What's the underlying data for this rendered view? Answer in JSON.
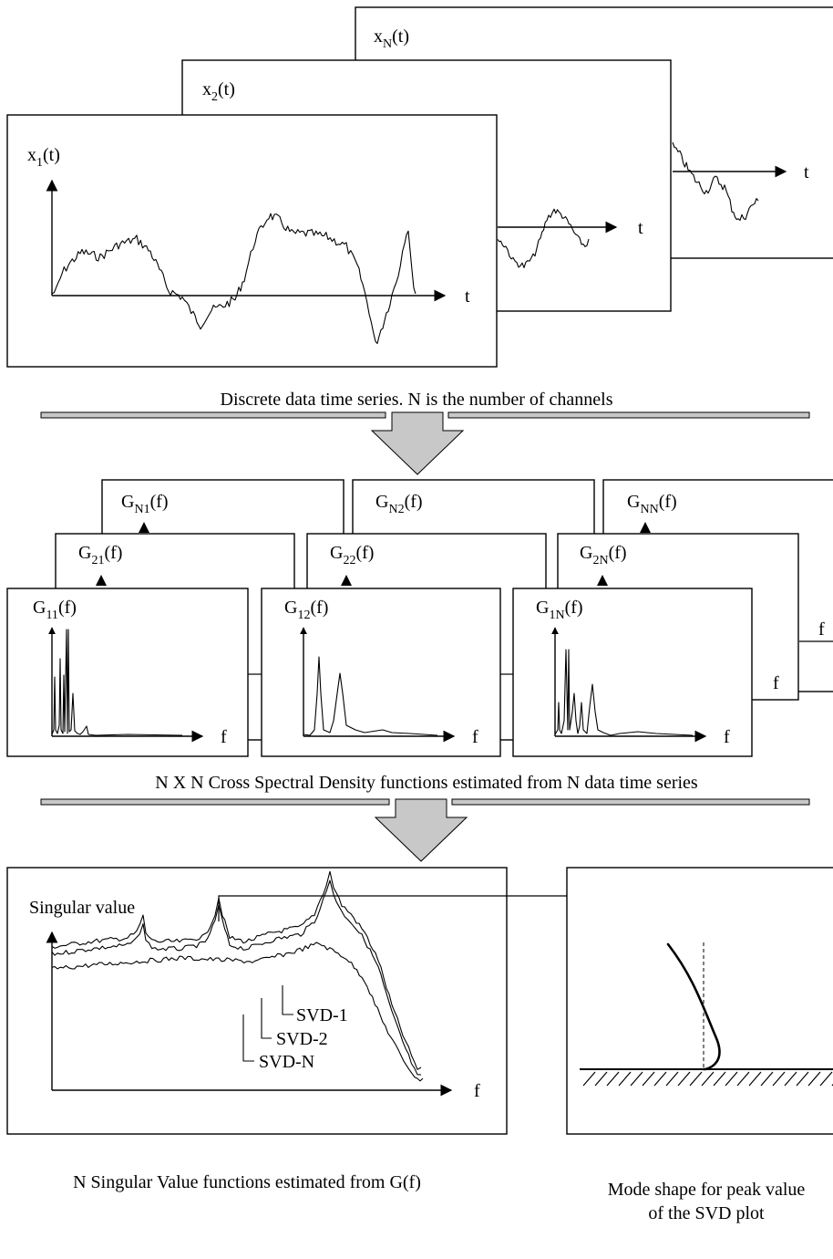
{
  "section1": {
    "caption": "Discrete data time series. N is the number of channels",
    "panels": {
      "xN": {
        "main": "x",
        "sub": "N",
        "tail": "(t)"
      },
      "x2": {
        "main": "x",
        "sub": "2",
        "tail": "(t)"
      },
      "x1": {
        "main": "x",
        "sub": "1",
        "tail": "(t)"
      }
    },
    "axis_label": "t"
  },
  "section2": {
    "caption": "N X N Cross Spectral Density functions estimated from N data time series",
    "axis_label": "f",
    "panels": {
      "gN1": {
        "main": "G",
        "sub": "N1",
        "tail": "(f)"
      },
      "g21": {
        "main": "G",
        "sub": "21",
        "tail": "(f)"
      },
      "g11": {
        "main": "G",
        "sub": "11",
        "tail": "(f)"
      },
      "gN2": {
        "main": "G",
        "sub": "N2",
        "tail": "(f)"
      },
      "g22": {
        "main": "G",
        "sub": "22",
        "tail": "(f)"
      },
      "g12": {
        "main": "G",
        "sub": "12",
        "tail": "(f)"
      },
      "gNN": {
        "main": "G",
        "sub": "NN",
        "tail": "(f)"
      },
      "g2N": {
        "main": "G",
        "sub": "2N",
        "tail": "(f)"
      },
      "g1N": {
        "main": "G",
        "sub": "1N",
        "tail": "(f)"
      }
    }
  },
  "section3": {
    "caption": "N Singular Value functions estimated from G(f)",
    "ylabel": "Singular value",
    "xlabel": "f",
    "curves": [
      "SVD-1",
      "SVD-2",
      "SVD-N"
    ]
  },
  "section4": {
    "caption_line1": "Mode shape for peak value",
    "caption_line2": "of the SVD plot"
  }
}
